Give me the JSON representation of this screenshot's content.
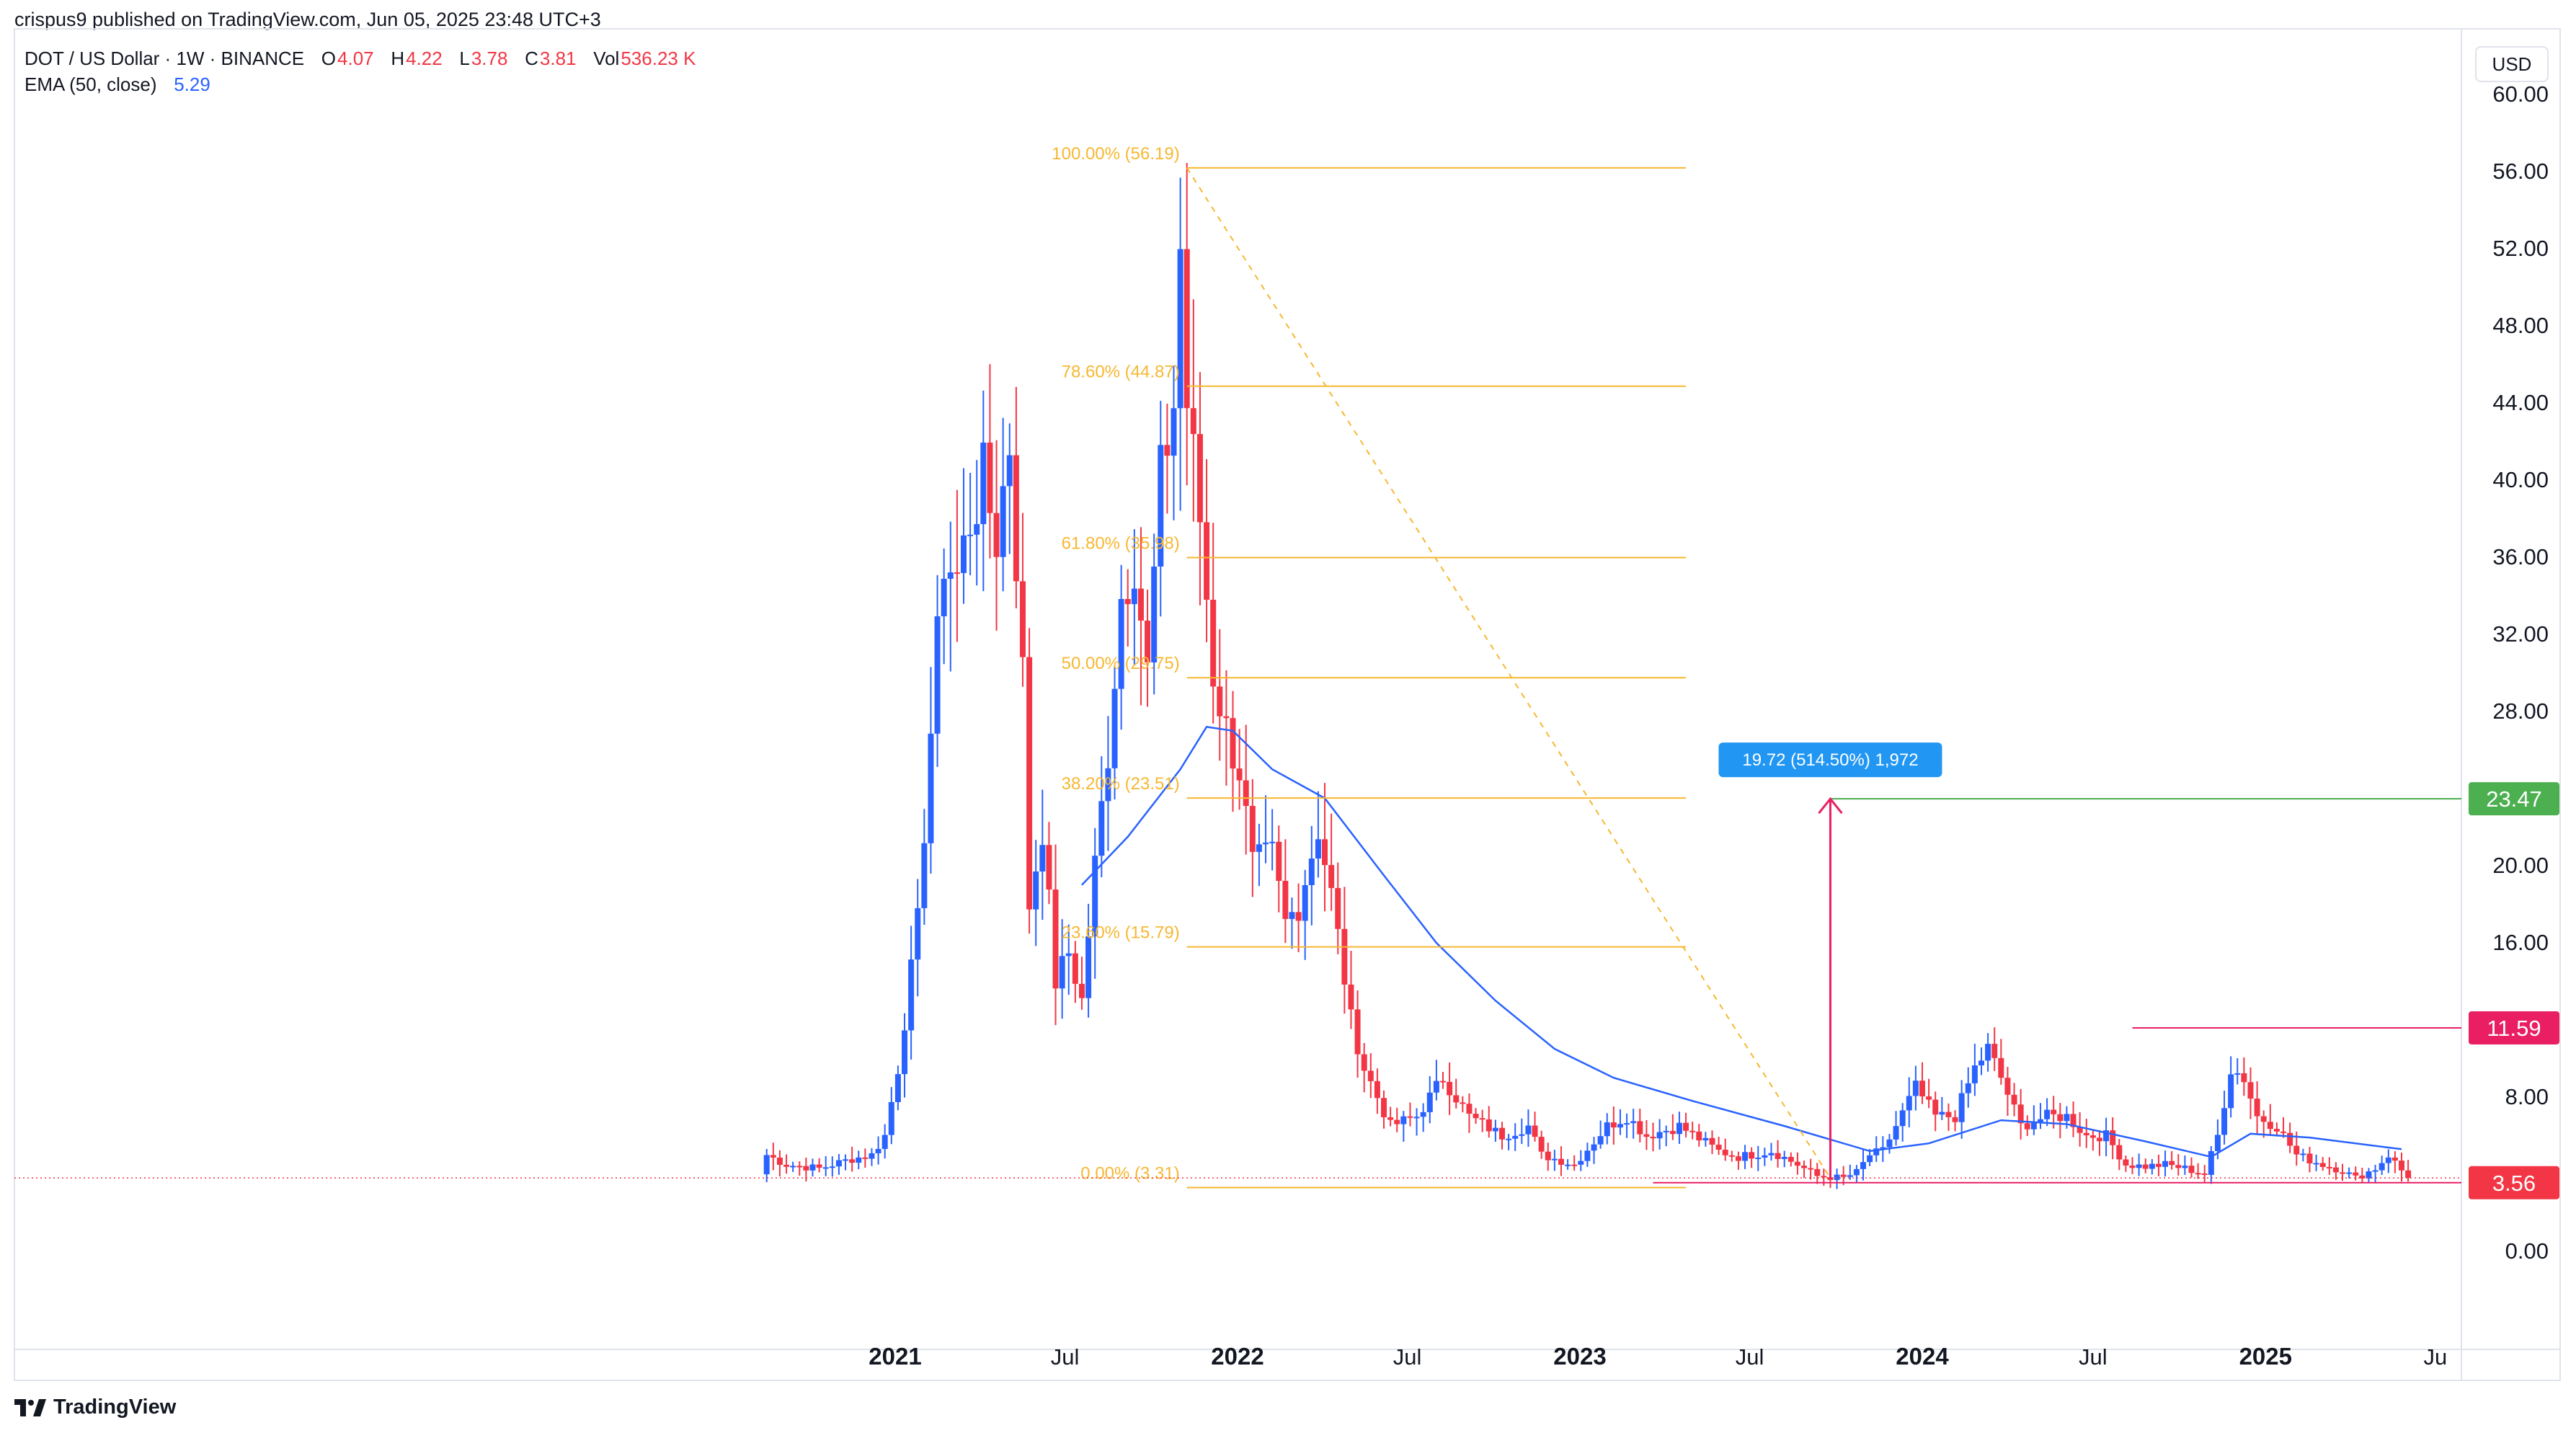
{
  "header": {
    "publisher_line": "crispus9 published on TradingView.com, Jun 05, 2025 23:48 UTC+3",
    "symbol": "DOT / US Dollar · 1W · BINANCE",
    "ohlc": {
      "o_label": "O",
      "o_value": "4.07",
      "h_label": "H",
      "h_value": "4.22",
      "l_label": "L",
      "l_value": "3.78",
      "c_label": "C",
      "c_value": "3.81",
      "vol_label": "Vol",
      "vol_value": "536.23 K"
    },
    "indicator": {
      "label": "EMA (50, close)",
      "value": "5.29"
    }
  },
  "currency_button": "USD",
  "branding": {
    "logo_text": "TradingView"
  },
  "colors": {
    "up": "#2962ff",
    "down": "#f23645",
    "fib": "#f7b731",
    "ema": "#2962ff",
    "target": "#4caf50",
    "measure": "#e91e63"
  },
  "chart_data": {
    "type": "candlestick",
    "title": "",
    "xlabel": "",
    "ylabel": "",
    "ylim": [
      -2,
      62
    ],
    "grid": false,
    "y_ticks": [
      "0.00",
      "8.00",
      "16.00",
      "20.00",
      "28.00",
      "32.00",
      "36.00",
      "40.00",
      "44.00",
      "48.00",
      "52.00",
      "56.00",
      "60.00"
    ],
    "x_ticks": [
      "2021",
      "Jul",
      "2022",
      "Jul",
      "2023",
      "Jul",
      "2024",
      "Jul",
      "2025",
      "Ju"
    ],
    "x_tick_bold": [
      "2021",
      "2022",
      "2023",
      "2024",
      "2025"
    ],
    "timeframe": "1W",
    "series": [
      {
        "name": "DOT / US Dollar",
        "kind": "candles",
        "anchors": [
          [
            "2020-08-17",
            5.0
          ],
          [
            "2020-09-07",
            4.5
          ],
          [
            "2020-10-12",
            4.3
          ],
          [
            "2020-11-16",
            4.8
          ],
          [
            "2020-12-07",
            5.0
          ],
          [
            "2020-12-21",
            6.0
          ],
          [
            "2021-01-04",
            9.5
          ],
          [
            "2021-01-25",
            17.0
          ],
          [
            "2021-02-08",
            27.0
          ],
          [
            "2021-02-22",
            36.0
          ],
          [
            "2021-03-08",
            35.0
          ],
          [
            "2021-03-22",
            38.0
          ],
          [
            "2021-04-05",
            40.0
          ],
          [
            "2021-04-19",
            37.0
          ],
          [
            "2021-05-03",
            42.0
          ],
          [
            "2021-05-17",
            30.0
          ],
          [
            "2021-05-24",
            18.0
          ],
          [
            "2021-06-07",
            22.0
          ],
          [
            "2021-06-21",
            14.0
          ],
          [
            "2021-07-05",
            15.5
          ],
          [
            "2021-07-19",
            13.0
          ],
          [
            "2021-08-02",
            20.0
          ],
          [
            "2021-08-16",
            26.0
          ],
          [
            "2021-08-30",
            34.0
          ],
          [
            "2021-09-13",
            36.0
          ],
          [
            "2021-09-27",
            30.0
          ],
          [
            "2021-10-11",
            40.0
          ],
          [
            "2021-10-25",
            44.0
          ],
          [
            "2021-11-01",
            52.0
          ],
          [
            "2021-11-08",
            44.0
          ],
          [
            "2021-11-22",
            38.0
          ],
          [
            "2021-12-06",
            30.0
          ],
          [
            "2021-12-20",
            27.0
          ],
          [
            "2022-01-03",
            25.0
          ],
          [
            "2022-01-17",
            20.0
          ],
          [
            "2022-02-07",
            20.5
          ],
          [
            "2022-02-21",
            17.0
          ],
          [
            "2022-03-07",
            18.0
          ],
          [
            "2022-03-28",
            22.0
          ],
          [
            "2022-04-11",
            18.5
          ],
          [
            "2022-05-02",
            12.0
          ],
          [
            "2022-05-16",
            9.5
          ],
          [
            "2022-06-13",
            6.5
          ],
          [
            "2022-07-11",
            7.0
          ],
          [
            "2022-08-08",
            9.0
          ],
          [
            "2022-09-05",
            7.0
          ],
          [
            "2022-10-10",
            6.0
          ],
          [
            "2022-11-07",
            6.5
          ],
          [
            "2022-11-21",
            5.0
          ],
          [
            "2022-12-26",
            4.5
          ],
          [
            "2023-01-30",
            6.5
          ],
          [
            "2023-02-20",
            7.0
          ],
          [
            "2023-03-13",
            6.0
          ],
          [
            "2023-04-17",
            6.5
          ],
          [
            "2023-05-29",
            5.2
          ],
          [
            "2023-06-19",
            4.9
          ],
          [
            "2023-07-24",
            5.2
          ],
          [
            "2023-08-21",
            4.5
          ],
          [
            "2023-09-11",
            3.9
          ],
          [
            "2023-10-09",
            3.8
          ],
          [
            "2023-10-23",
            4.1
          ],
          [
            "2023-11-06",
            5.0
          ],
          [
            "2023-11-20",
            5.2
          ],
          [
            "2023-12-04",
            6.5
          ],
          [
            "2023-12-25",
            8.5
          ],
          [
            "2024-01-15",
            7.0
          ],
          [
            "2024-02-05",
            7.0
          ],
          [
            "2024-02-26",
            9.5
          ],
          [
            "2024-03-11",
            10.5
          ],
          [
            "2024-03-25",
            9.0
          ],
          [
            "2024-04-15",
            6.5
          ],
          [
            "2024-05-13",
            7.0
          ],
          [
            "2024-06-03",
            7.0
          ],
          [
            "2024-06-24",
            6.0
          ],
          [
            "2024-07-15",
            6.0
          ],
          [
            "2024-08-05",
            4.5
          ],
          [
            "2024-08-26",
            4.4
          ],
          [
            "2024-09-16",
            4.5
          ],
          [
            "2024-10-07",
            4.3
          ],
          [
            "2024-10-28",
            4.0
          ],
          [
            "2024-11-11",
            6.0
          ],
          [
            "2024-11-25",
            9.5
          ],
          [
            "2024-12-09",
            9.0
          ],
          [
            "2024-12-23",
            7.0
          ],
          [
            "2025-01-13",
            6.5
          ],
          [
            "2025-02-03",
            5.0
          ],
          [
            "2025-03-03",
            4.5
          ],
          [
            "2025-03-24",
            4.2
          ],
          [
            "2025-04-07",
            3.8
          ],
          [
            "2025-04-28",
            4.3
          ],
          [
            "2025-05-12",
            5.0
          ],
          [
            "2025-05-26",
            4.2
          ],
          [
            "2025-06-02",
            3.81
          ]
        ]
      },
      {
        "name": "EMA (50, close)",
        "kind": "line",
        "points": [
          [
            "2021-07-19",
            19.0
          ],
          [
            "2021-09-06",
            21.5
          ],
          [
            "2021-11-01",
            25.0
          ],
          [
            "2021-11-29",
            27.2
          ],
          [
            "2021-12-27",
            27.0
          ],
          [
            "2022-02-07",
            25.0
          ],
          [
            "2022-04-04",
            23.5
          ],
          [
            "2022-06-06",
            19.5
          ],
          [
            "2022-08-01",
            16.0
          ],
          [
            "2022-10-03",
            13.0
          ],
          [
            "2022-12-05",
            10.5
          ],
          [
            "2023-02-06",
            9.0
          ],
          [
            "2023-05-01",
            7.8
          ],
          [
            "2023-08-07",
            6.5
          ],
          [
            "2023-11-06",
            5.2
          ],
          [
            "2024-01-08",
            5.6
          ],
          [
            "2024-03-25",
            6.8
          ],
          [
            "2024-06-03",
            6.6
          ],
          [
            "2024-08-26",
            5.7
          ],
          [
            "2024-11-04",
            4.9
          ],
          [
            "2024-12-16",
            6.1
          ],
          [
            "2025-02-17",
            5.9
          ],
          [
            "2025-05-26",
            5.3
          ]
        ]
      }
    ],
    "fibonacci": {
      "start_date": "2021-11-08",
      "end_date": "2023-04-24",
      "levels": [
        {
          "label": "100.00% (56.19)",
          "price": 56.19
        },
        {
          "label": "78.60% (44.87)",
          "price": 44.87
        },
        {
          "label": "61.80% (35.98)",
          "price": 35.98
        },
        {
          "label": "50.00% (29.75)",
          "price": 29.75
        },
        {
          "label": "38.20% (23.51)",
          "price": 23.51
        },
        {
          "label": "23.60% (15.79)",
          "price": 15.79
        },
        {
          "label": "0.00% (3.31)",
          "price": 3.31
        }
      ]
    },
    "fib_trend_line": {
      "from": [
        "2021-11-08",
        56.19
      ],
      "to": [
        "2023-09-25",
        3.8
      ]
    },
    "measure": {
      "date": "2023-09-25",
      "from_price": 3.8,
      "to_price": 23.47,
      "label": "19.72 (514.50%) 1,972"
    },
    "target_line": {
      "from_date": "2023-09-25",
      "price": 23.47
    },
    "resistance_line": {
      "from_date": "2024-08-12",
      "price": 11.59
    },
    "support_line": {
      "from_date": "2023-03-20",
      "price": 3.56
    },
    "price_tags": [
      {
        "label": "23.47",
        "price": 23.47,
        "color": "#4caf50"
      },
      {
        "label": "11.59",
        "price": 11.59,
        "color": "#e91e63"
      },
      {
        "label": "3.56",
        "price": 3.56,
        "color": "#f23645"
      }
    ],
    "last_price": 3.81
  }
}
